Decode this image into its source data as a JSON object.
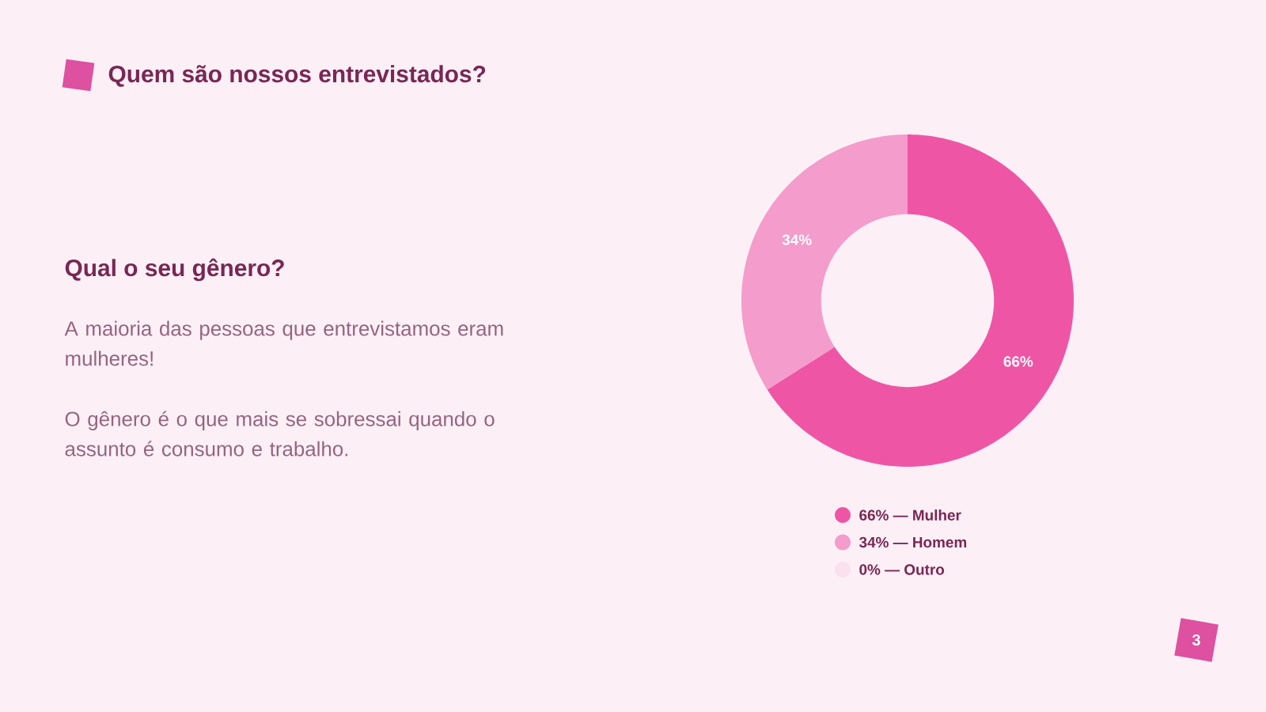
{
  "chart_data": {
    "type": "donut",
    "title": "Quem são nossos entrevistados?",
    "subtitle": "Qual o seu gênero?",
    "categories": [
      "66% — Mulher",
      "34% — Homem",
      "0% — Outro"
    ],
    "values": [
      66,
      34,
      0
    ],
    "colors": [
      "#ef55a5",
      "#f49ccb",
      "#fbe0ee"
    ],
    "value_labels": [
      "66%",
      "34%",
      null
    ],
    "legend": "bottom",
    "annotations": [
      "A maioria das pessoas que entrevistamos eram mulheres!",
      "O gênero é o que mais se sobressai quando o assunto é consumo e trabalho.",
      "3"
    ]
  }
}
